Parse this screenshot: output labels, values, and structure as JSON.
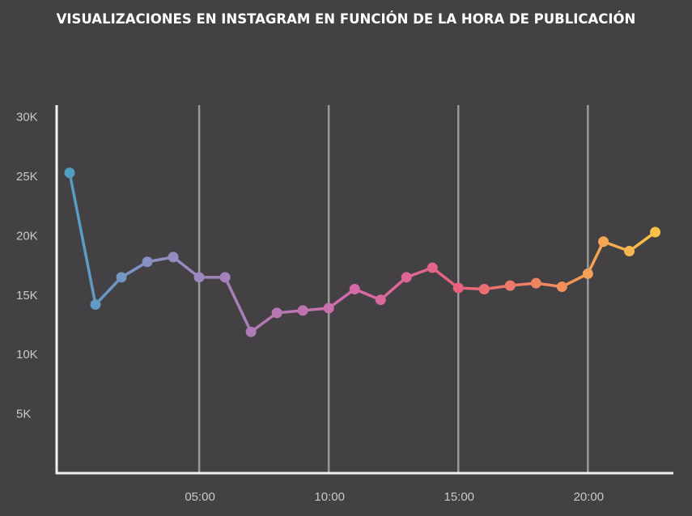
{
  "title": "VISUALIZACIONES EN INSTAGRAM EN FUNCIÓN DE LA HORA DE PUBLICACIÓN",
  "colors": {
    "background": "#434143",
    "axis": "#f2f2f2",
    "gridline": "#9a9a9a",
    "tick_text": "#c9c9c9",
    "gradient": [
      "#4e9fc4",
      "#8f8fc0",
      "#b07bb5",
      "#d56aa7",
      "#e8627c",
      "#f28c5c",
      "#f7c14a"
    ]
  },
  "chart_data": {
    "type": "line",
    "title": "VISUALIZACIONES EN INSTAGRAM EN FUNCIÓN DE LA HORA DE PUBLICACIÓN",
    "xlabel": "",
    "ylabel": "",
    "x_ticks": [
      {
        "label": "05:00",
        "value": 5
      },
      {
        "label": "10:00",
        "value": 10
      },
      {
        "label": "15:00",
        "value": 15
      },
      {
        "label": "20:00",
        "value": 20
      }
    ],
    "y_ticks": [
      {
        "label": "5K",
        "value": 5000
      },
      {
        "label": "10K",
        "value": 10000
      },
      {
        "label": "15K",
        "value": 15000
      },
      {
        "label": "20K",
        "value": 20000
      },
      {
        "label": "25K",
        "value": 25000
      },
      {
        "label": "30K",
        "value": 30000
      }
    ],
    "xlim": [
      -0.5,
      23.3
    ],
    "ylim": [
      0,
      31000
    ],
    "grid": "vertical at x ticks",
    "legend": "none",
    "x": [
      0,
      1,
      2,
      3,
      4,
      5,
      6,
      7,
      8,
      9,
      10,
      11,
      12,
      13,
      14,
      15,
      16,
      17,
      18,
      19,
      20,
      20.6,
      21.6,
      22.6
    ],
    "values": [
      25300,
      14200,
      16500,
      17800,
      18200,
      16500,
      16500,
      11900,
      13500,
      13700,
      13900,
      15500,
      14600,
      16500,
      17300,
      15600,
      15500,
      15800,
      16000,
      15700,
      16800,
      19500,
      18700,
      20300
    ]
  }
}
